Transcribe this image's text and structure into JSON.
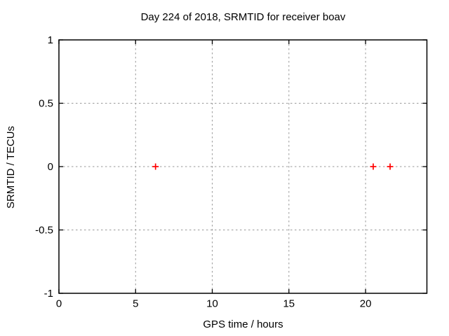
{
  "title": "Day 224 of 2018, SRMTID for receiver boav",
  "colors": {
    "background": "#ffffff",
    "text": "#000000",
    "border": "#000000",
    "grid": "#999999",
    "marker": "#ff0000"
  },
  "chart_data": {
    "type": "scatter",
    "title": "Day 224 of 2018, SRMTID for receiver boav",
    "xlabel": "GPS time / hours",
    "ylabel": "SRMTID / TECUs",
    "xlim": [
      0,
      24
    ],
    "ylim": [
      -1,
      1
    ],
    "xticks": [
      0,
      5,
      10,
      15,
      20
    ],
    "yticks": [
      -1,
      -0.5,
      0,
      0.5,
      1
    ],
    "grid": true,
    "grid_style": "dashed",
    "legend": "none",
    "series": [
      {
        "name": "SRMTID",
        "marker": "plus",
        "color": "#ff0000",
        "x": [
          6.3,
          20.5,
          21.6
        ],
        "y": [
          0,
          0,
          0
        ]
      }
    ]
  }
}
